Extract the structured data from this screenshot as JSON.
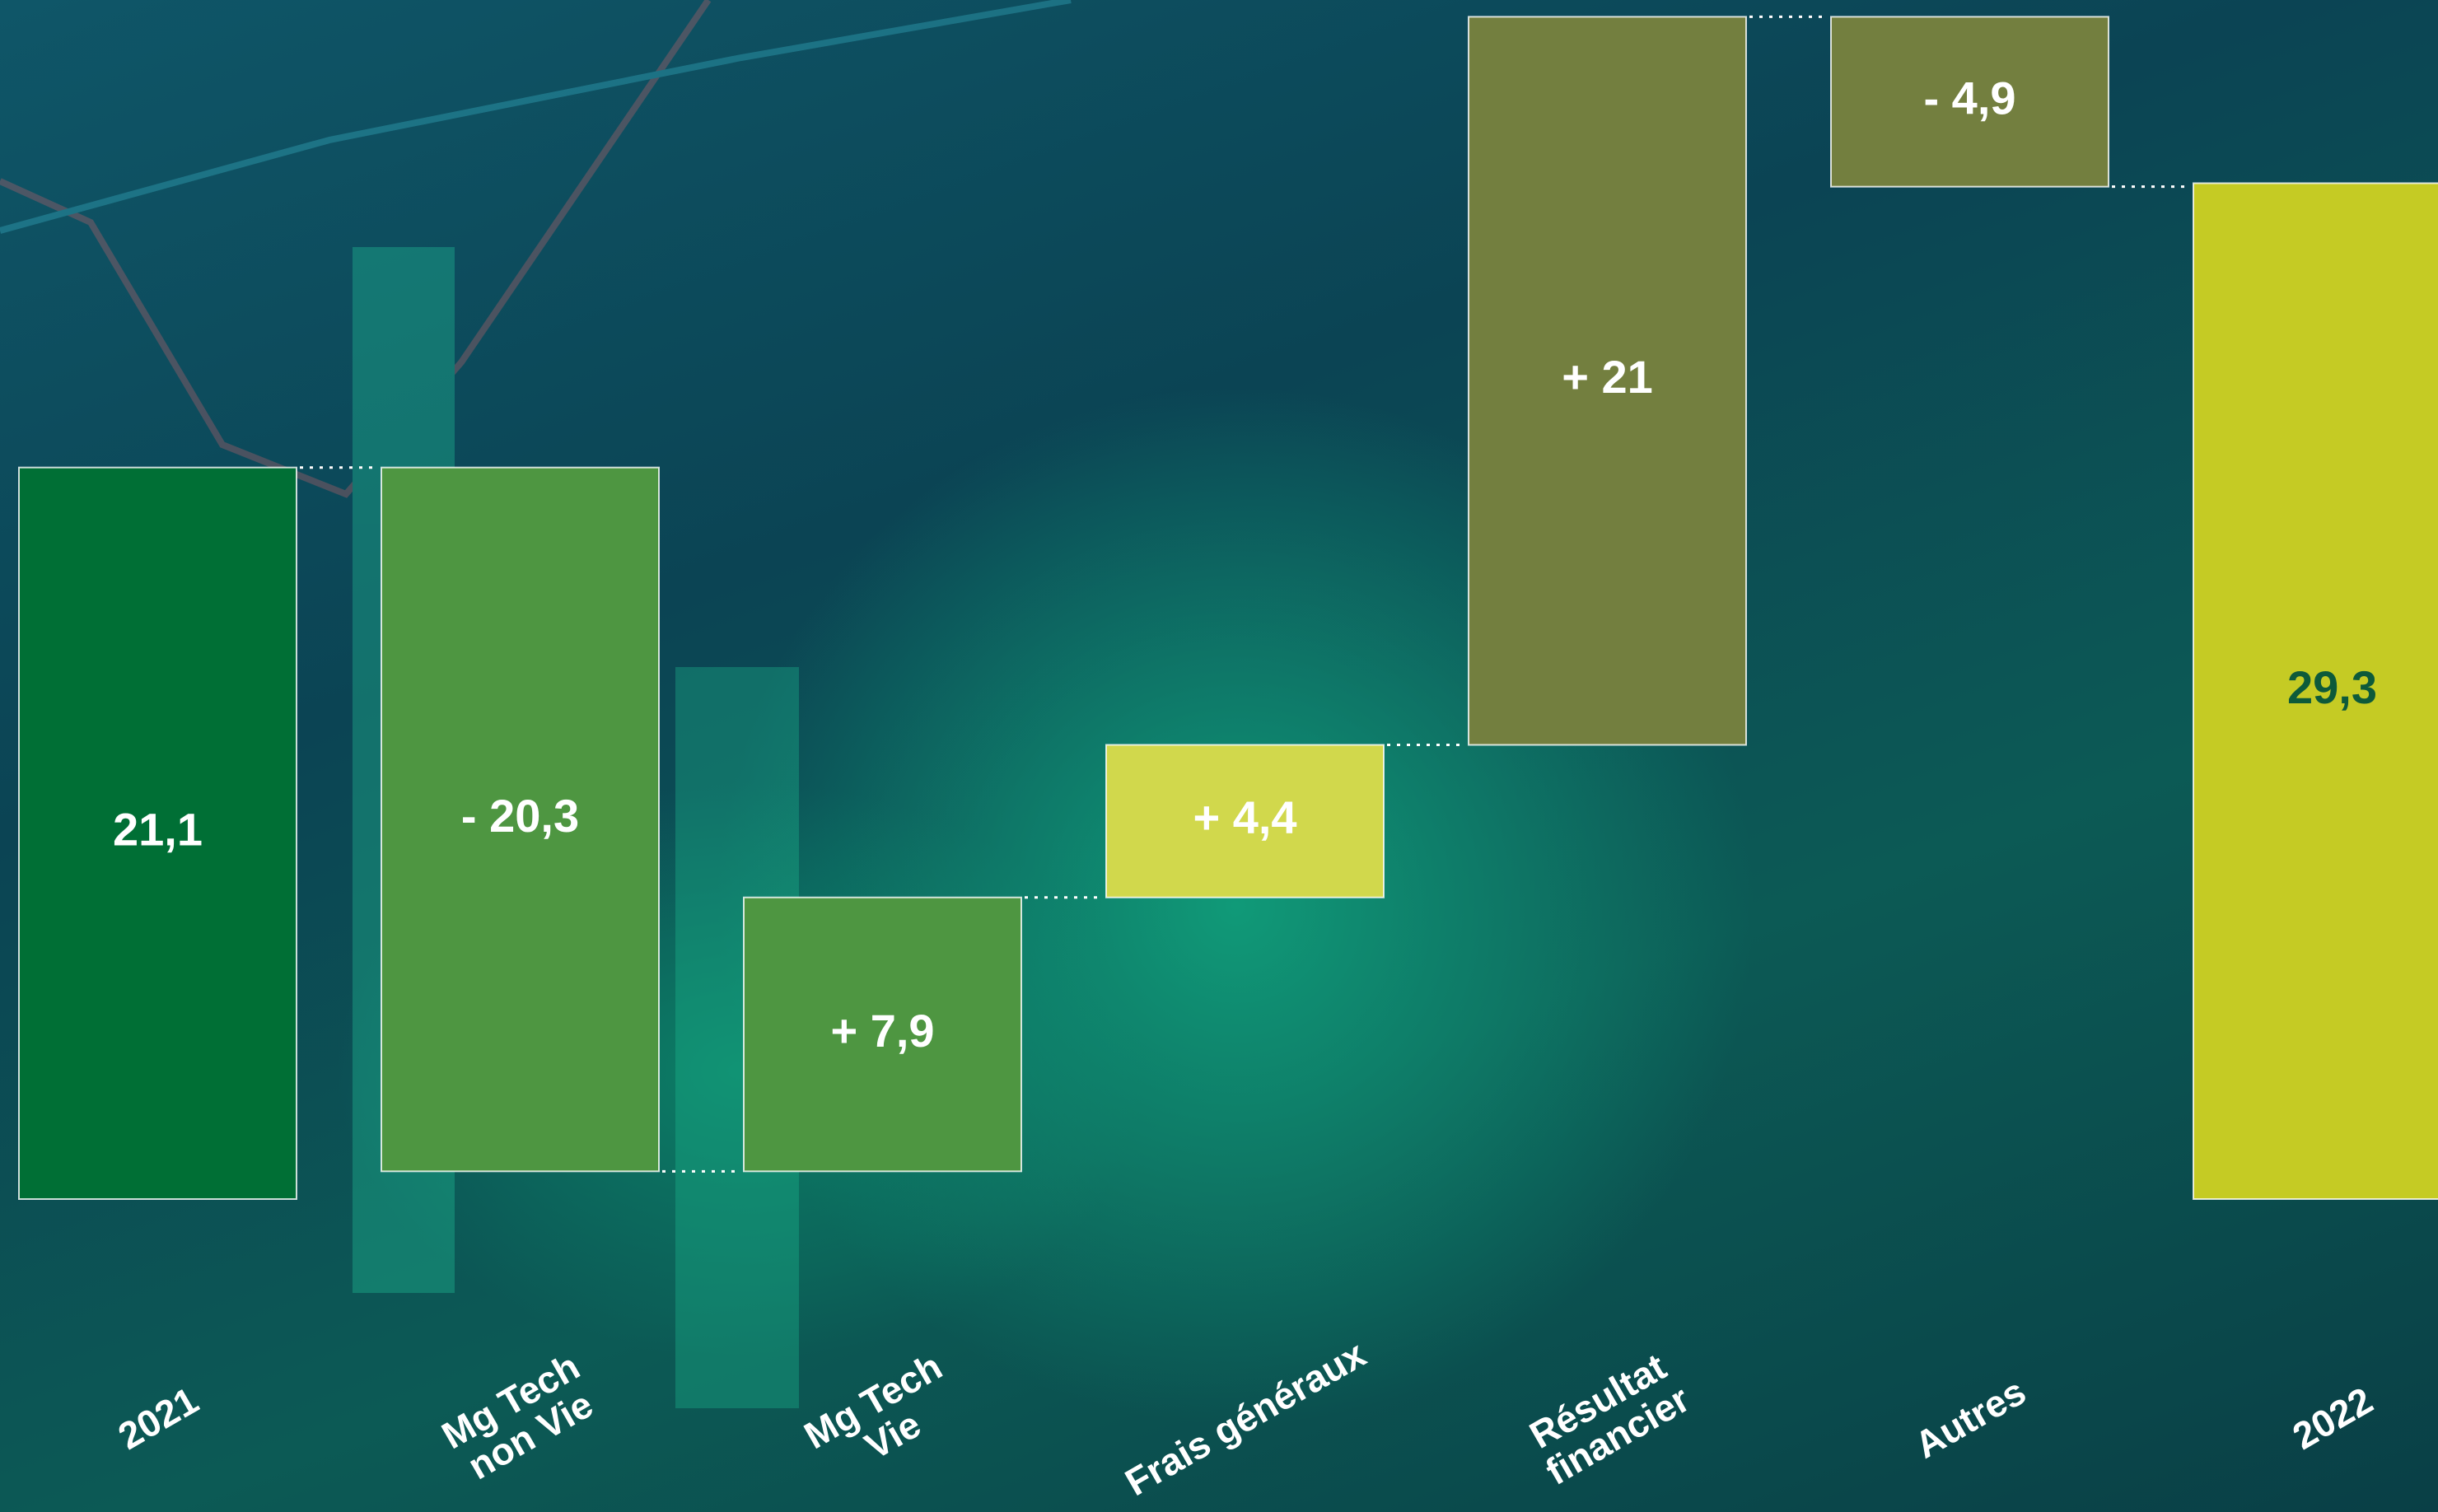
{
  "chart_data": {
    "type": "waterfall",
    "categories": [
      "2021",
      "Mg Tech\nnon Vie",
      "Mg Tech\nVie",
      "Frais généraux",
      "Résultat\nfinancier",
      "Autres",
      "2022"
    ],
    "values": [
      21.1,
      -20.3,
      7.9,
      4.4,
      21,
      -4.9,
      29.3
    ],
    "value_labels": [
      "21,1",
      "- 20,3",
      "+ 7,9",
      "+ 4,4",
      "+ 21",
      "- 4,9",
      "29,3"
    ],
    "colors": [
      "#006f35",
      "#4e9641",
      "#4e9641",
      "#d1d84c",
      "#737f3f",
      "#737f3f",
      "#c5cb24"
    ],
    "label_colors": [
      "#ffffff",
      "#ffffff",
      "#ffffff",
      "#ffffff",
      "#ffffff",
      "#ffffff",
      "#0d5a3a"
    ]
  }
}
